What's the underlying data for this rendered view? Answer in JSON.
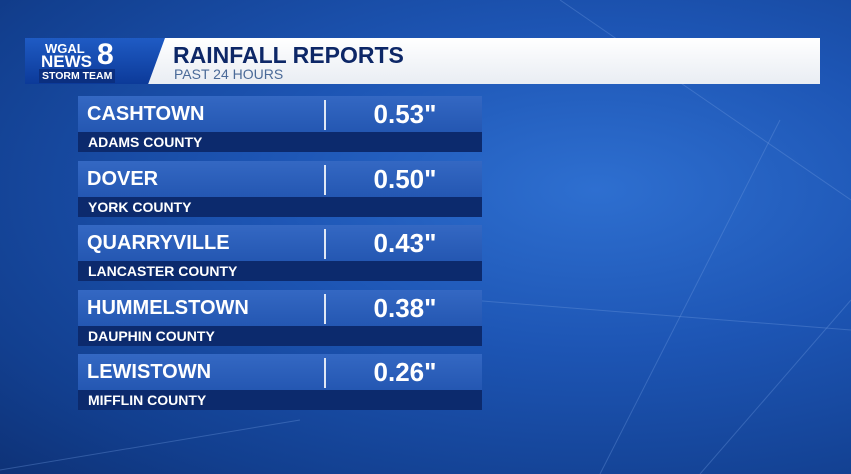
{
  "header": {
    "logo": {
      "station": "WGAL",
      "news": "NEWS",
      "channel": "8",
      "team": "STORM TEAM"
    },
    "title": "RAINFALL REPORTS",
    "subtitle": "PAST 24 HOURS"
  },
  "table": {
    "rows": [
      {
        "place": "CASHTOWN",
        "amount": "0.53\"",
        "county": "ADAMS COUNTY"
      },
      {
        "place": "DOVER",
        "amount": "0.50\"",
        "county": "YORK COUNTY"
      },
      {
        "place": "QUARRYVILLE",
        "amount": "0.43\"",
        "county": "LANCASTER COUNTY"
      },
      {
        "place": "HUMMELSTOWN",
        "amount": "0.38\"",
        "county": "DAUPHIN COUNTY"
      },
      {
        "place": "LEWISTOWN",
        "amount": "0.26\"",
        "county": "MIFFLIN COUNTY"
      }
    ]
  }
}
